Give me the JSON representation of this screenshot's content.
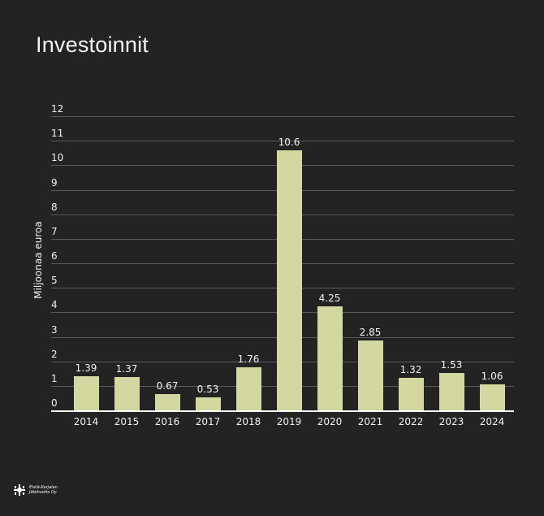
{
  "title": "Investoinnit",
  "logo": {
    "line1": "Etelä-Karjalan",
    "line2": "Jätehuolto Oy",
    "badge": "Hoo"
  },
  "colors": {
    "background": "#232323",
    "bar": "#d3d8a1",
    "grid": "#5a5a5a",
    "text": "#f4f4f4"
  },
  "chart_data": {
    "type": "bar",
    "title": "Investoinnit",
    "xlabel": "",
    "ylabel": "Miljoonaa euroa",
    "categories": [
      "2014",
      "2015",
      "2016",
      "2017",
      "2018",
      "2019",
      "2020",
      "2021",
      "2022",
      "2023",
      "2024"
    ],
    "values": [
      1.39,
      1.37,
      0.67,
      0.53,
      1.76,
      10.6,
      4.25,
      2.85,
      1.32,
      1.53,
      1.06
    ],
    "value_labels": [
      "1.39",
      "1.37",
      "0.67",
      "0.53",
      "1.76",
      "10.6",
      "4.25",
      "2.85",
      "1.32",
      "1.53",
      "1.06"
    ],
    "yticks": [
      "0",
      "1",
      "2",
      "3",
      "4",
      "5",
      "6",
      "7",
      "8",
      "9",
      "10",
      "11",
      "12"
    ],
    "ylim": [
      0,
      12
    ],
    "grid": true,
    "legend": null
  }
}
